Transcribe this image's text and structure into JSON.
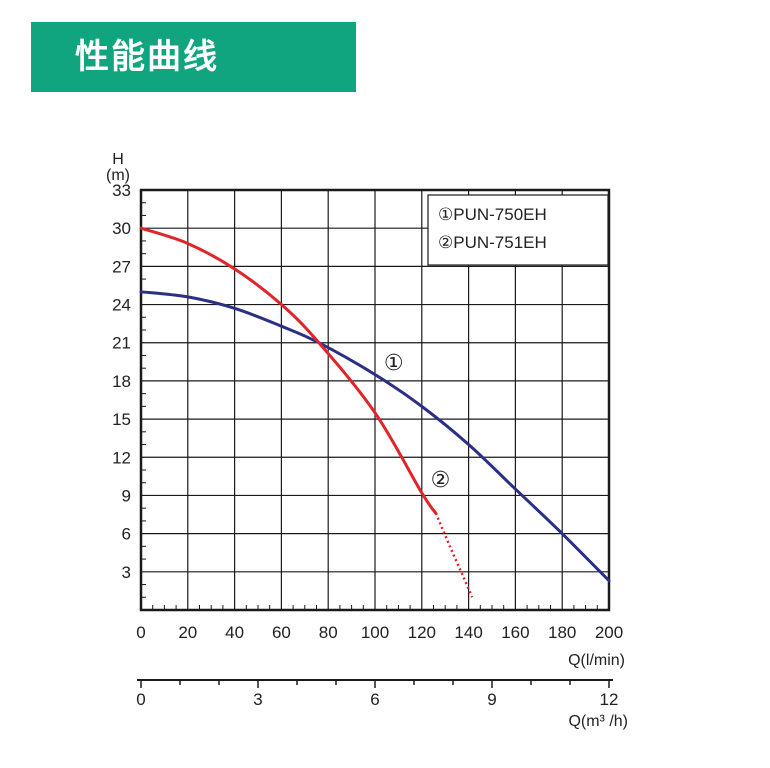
{
  "header": {
    "title": "性能曲线"
  },
  "colors": {
    "banner": "#11a57f",
    "series_1": "#2b2f85",
    "series_2": "#e0252a",
    "grid": "#1a1a1a"
  },
  "chart_data": {
    "type": "line",
    "title": "",
    "ylabel_top": "H",
    "ylabel_unit": "(m)",
    "xlabel": "Q(l/min)",
    "xlabel2": "Q(m³ /h)",
    "xlim": [
      0,
      200
    ],
    "ylim": [
      0,
      33
    ],
    "xticks": [
      0,
      20,
      40,
      60,
      80,
      100,
      120,
      140,
      160,
      180,
      200
    ],
    "yticks": [
      3,
      6,
      9,
      12,
      15,
      18,
      21,
      24,
      27,
      30,
      33
    ],
    "secondary_xlim": [
      0,
      12
    ],
    "secondary_xticks": [
      0,
      3,
      6,
      9,
      12
    ],
    "grid": true,
    "legend": {
      "position": "top-right",
      "entries": [
        "①PUN-750EH",
        "②PUN-751EH"
      ]
    },
    "series": [
      {
        "name": "PUN-750EH",
        "marker": "①",
        "color": "#2b2f85",
        "x": [
          0,
          20,
          40,
          60,
          76,
          100,
          120,
          140,
          160,
          180,
          200
        ],
        "y": [
          25.0,
          24.6,
          23.7,
          22.3,
          21.0,
          18.5,
          16.0,
          13.0,
          9.5,
          6.0,
          2.3
        ]
      },
      {
        "name": "PUN-751EH",
        "marker": "②",
        "color": "#e0252a",
        "x": [
          0,
          20,
          40,
          60,
          76,
          100,
          120,
          126
        ],
        "y": [
          30.0,
          28.8,
          26.8,
          24.0,
          21.0,
          15.5,
          9.2,
          7.6
        ],
        "dotted_x": [
          126,
          132,
          138,
          141.5
        ],
        "dotted_y": [
          7.6,
          5.0,
          2.5,
          1.0
        ]
      }
    ],
    "annotations": [
      {
        "text": "①",
        "x": 108,
        "y": 19.5
      },
      {
        "text": "②",
        "x": 128,
        "y": 10.3
      }
    ]
  }
}
